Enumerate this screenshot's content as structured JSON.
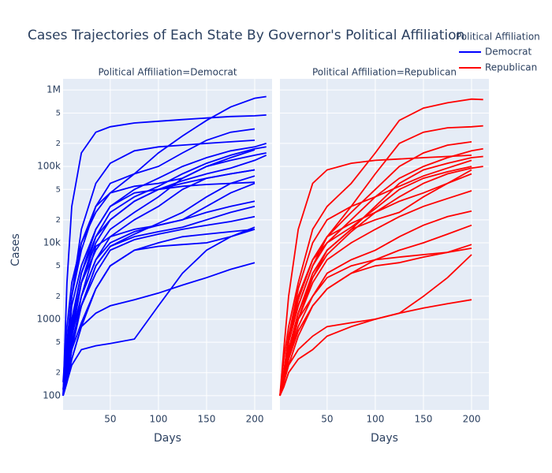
{
  "title": "Cases Trajectories of Each State By Governor's Political Affiliation",
  "y_axis_label": "Cases",
  "legend": {
    "title": "Political Affiliation",
    "position": "top-right",
    "entries": [
      {
        "name": "Democrat",
        "color": "#0000ff"
      },
      {
        "name": "Republican",
        "color": "#ff0000"
      }
    ]
  },
  "chart_data": [
    {
      "type": "line",
      "title": "Political Affiliation=Democrat",
      "x_label": "Days",
      "color": "#0000ff",
      "log_y": true,
      "grid": true,
      "show_y_tick_labels": true,
      "xlim": [
        1,
        218
      ],
      "xticks": [
        50,
        100,
        150,
        200
      ],
      "ylim": [
        65,
        1400000
      ],
      "yticks": [
        100,
        {
          "value": 200,
          "label": "2"
        },
        {
          "value": 500,
          "label": "5"
        },
        1000,
        {
          "value": 2000,
          "label": "2"
        },
        {
          "value": 5000,
          "label": "5"
        },
        {
          "value": 10000,
          "label": "10k"
        },
        {
          "value": 20000,
          "label": "2"
        },
        {
          "value": 50000,
          "label": "5"
        },
        {
          "value": 100000,
          "label": "100k"
        },
        {
          "value": 200000,
          "label": "2"
        },
        {
          "value": 500000,
          "label": "5"
        },
        {
          "value": 1000000,
          "label": "1M"
        }
      ],
      "x": [
        1,
        5,
        10,
        20,
        35,
        50,
        75,
        100,
        125,
        150,
        175,
        200,
        212
      ],
      "series": [
        {
          "values": [
            100,
            3000,
            30000,
            150000,
            280000,
            330000,
            370000,
            390000,
            410000,
            430000,
            450000,
            460000,
            470000
          ]
        },
        {
          "values": [
            150,
            800,
            3000,
            10000,
            25000,
            45000,
            80000,
            150000,
            250000,
            400000,
            600000,
            780000,
            820000
          ]
        },
        {
          "values": [
            100,
            500,
            2000,
            15000,
            60000,
            110000,
            160000,
            180000,
            190000,
            200000,
            210000,
            220000,
            null
          ]
        },
        {
          "values": [
            120,
            400,
            2000,
            8000,
            30000,
            60000,
            80000,
            100000,
            150000,
            220000,
            280000,
            310000,
            null
          ]
        },
        {
          "values": [
            100,
            300,
            1500,
            5000,
            15000,
            30000,
            50000,
            70000,
            100000,
            130000,
            160000,
            180000,
            200000
          ]
        },
        {
          "values": [
            100,
            300,
            1000,
            4000,
            12000,
            25000,
            40000,
            55000,
            80000,
            110000,
            140000,
            170000,
            180000
          ]
        },
        {
          "values": [
            100,
            400,
            2000,
            10000,
            30000,
            45000,
            55000,
            60000,
            70000,
            100000,
            130000,
            165000,
            null
          ]
        },
        {
          "values": [
            100,
            200,
            700,
            3000,
            8000,
            15000,
            25000,
            40000,
            70000,
            100000,
            120000,
            140000,
            150000
          ]
        },
        {
          "values": [
            100,
            250,
            800,
            3000,
            10000,
            20000,
            35000,
            50000,
            65000,
            80000,
            95000,
            120000,
            140000
          ]
        },
        {
          "values": [
            100,
            200,
            600,
            2000,
            6000,
            12000,
            20000,
            30000,
            50000,
            70000,
            80000,
            90000,
            null
          ]
        },
        {
          "values": [
            100,
            250,
            900,
            4000,
            15000,
            30000,
            45000,
            50000,
            55000,
            58000,
            60000,
            62000,
            null
          ]
        },
        {
          "values": [
            100,
            200,
            500,
            1500,
            5000,
            9000,
            13000,
            18000,
            25000,
            40000,
            60000,
            75000,
            null
          ]
        },
        {
          "values": [
            100,
            200,
            600,
            2000,
            6000,
            10000,
            14000,
            17000,
            20000,
            25000,
            30000,
            35000,
            null
          ]
        },
        {
          "values": [
            100,
            150,
            400,
            1500,
            5000,
            9000,
            12000,
            14000,
            16000,
            20000,
            25000,
            30000,
            null
          ]
        },
        {
          "values": [
            100,
            200,
            500,
            1500,
            4000,
            8000,
            11000,
            13000,
            15000,
            17000,
            19000,
            22000,
            null
          ]
        },
        {
          "values": [
            100,
            150,
            300,
            800,
            2500,
            5000,
            8000,
            10000,
            12000,
            13000,
            14000,
            15000,
            null
          ]
        },
        {
          "values": [
            100,
            200,
            400,
            900,
            2500,
            5000,
            8000,
            9000,
            9500,
            10000,
            12000,
            16000,
            null
          ]
        },
        {
          "values": [
            100,
            150,
            250,
            400,
            450,
            480,
            550,
            1500,
            4000,
            8000,
            12000,
            15000,
            null
          ]
        },
        {
          "values": [
            100,
            150,
            300,
            800,
            1200,
            1500,
            1800,
            2200,
            2800,
            3500,
            4500,
            5500,
            null
          ]
        },
        {
          "values": [
            100,
            180,
            400,
            2000,
            9000,
            12000,
            15000,
            17000,
            20000,
            30000,
            45000,
            60000,
            null
          ]
        },
        {
          "values": [
            100,
            200,
            600,
            3000,
            12000,
            20000,
            35000,
            50000,
            60000,
            70000,
            80000,
            90000,
            null
          ]
        }
      ]
    },
    {
      "type": "line",
      "title": "Political Affiliation=Republican",
      "x_label": "Days",
      "color": "#ff0000",
      "log_y": true,
      "grid": true,
      "show_y_tick_labels": false,
      "xlim": [
        1,
        218
      ],
      "xticks": [
        50,
        100,
        150,
        200
      ],
      "ylim": [
        65,
        1400000
      ],
      "yticks": [
        100,
        200,
        500,
        1000,
        2000,
        5000,
        10000,
        20000,
        50000,
        100000,
        200000,
        500000,
        1000000
      ],
      "x": [
        1,
        5,
        10,
        20,
        35,
        50,
        75,
        100,
        125,
        150,
        175,
        200,
        212
      ],
      "series": [
        {
          "values": [
            100,
            300,
            800,
            3000,
            15000,
            30000,
            60000,
            150000,
            400000,
            580000,
            680000,
            760000,
            750000
          ]
        },
        {
          "values": [
            100,
            200,
            500,
            1500,
            5000,
            12000,
            30000,
            80000,
            200000,
            280000,
            320000,
            330000,
            340000
          ]
        },
        {
          "values": [
            100,
            400,
            2000,
            15000,
            60000,
            90000,
            110000,
            120000,
            125000,
            130000,
            135000,
            140000,
            null
          ]
        },
        {
          "values": [
            100,
            200,
            600,
            2000,
            6000,
            12000,
            25000,
            50000,
            100000,
            150000,
            190000,
            210000,
            null
          ]
        },
        {
          "values": [
            100,
            200,
            500,
            1500,
            5000,
            10000,
            20000,
            40000,
            70000,
            100000,
            130000,
            160000,
            170000
          ]
        },
        {
          "values": [
            100,
            150,
            400,
            1200,
            4000,
            8000,
            15000,
            30000,
            60000,
            90000,
            110000,
            130000,
            135000
          ]
        },
        {
          "values": [
            100,
            200,
            600,
            2500,
            10000,
            20000,
            30000,
            40000,
            55000,
            75000,
            95000,
            120000,
            null
          ]
        },
        {
          "values": [
            100,
            150,
            300,
            1000,
            3500,
            7000,
            14000,
            25000,
            40000,
            60000,
            80000,
            95000,
            100000
          ]
        },
        {
          "values": [
            100,
            200,
            500,
            1800,
            6000,
            12000,
            18000,
            25000,
            35000,
            45000,
            60000,
            80000,
            null
          ]
        },
        {
          "values": [
            100,
            150,
            350,
            1000,
            3000,
            6000,
            10000,
            15000,
            22000,
            30000,
            38000,
            48000,
            null
          ]
        },
        {
          "values": [
            100,
            150,
            300,
            800,
            2000,
            4000,
            6000,
            8000,
            12000,
            17000,
            22000,
            26000,
            null
          ]
        },
        {
          "values": [
            100,
            150,
            250,
            600,
            1500,
            2500,
            4000,
            6000,
            8000,
            10000,
            13000,
            17000,
            null
          ]
        },
        {
          "values": [
            100,
            150,
            300,
            700,
            1500,
            2500,
            4000,
            5000,
            5500,
            6500,
            7500,
            9500,
            null
          ]
        },
        {
          "values": [
            100,
            200,
            400,
            1000,
            2000,
            3500,
            5000,
            6000,
            6500,
            7000,
            7500,
            8500,
            null
          ]
        },
        {
          "values": [
            100,
            130,
            200,
            300,
            400,
            600,
            800,
            1000,
            1200,
            2000,
            3500,
            7000,
            null
          ]
        },
        {
          "values": [
            100,
            150,
            250,
            400,
            600,
            800,
            900,
            1000,
            1200,
            1400,
            1600,
            1800,
            null
          ]
        },
        {
          "values": [
            100,
            180,
            400,
            1200,
            3500,
            8000,
            15000,
            20000,
            25000,
            40000,
            60000,
            90000,
            null
          ]
        },
        {
          "values": [
            100,
            200,
            500,
            2000,
            6000,
            10000,
            16000,
            28000,
            50000,
            70000,
            85000,
            100000,
            null
          ]
        }
      ]
    }
  ]
}
